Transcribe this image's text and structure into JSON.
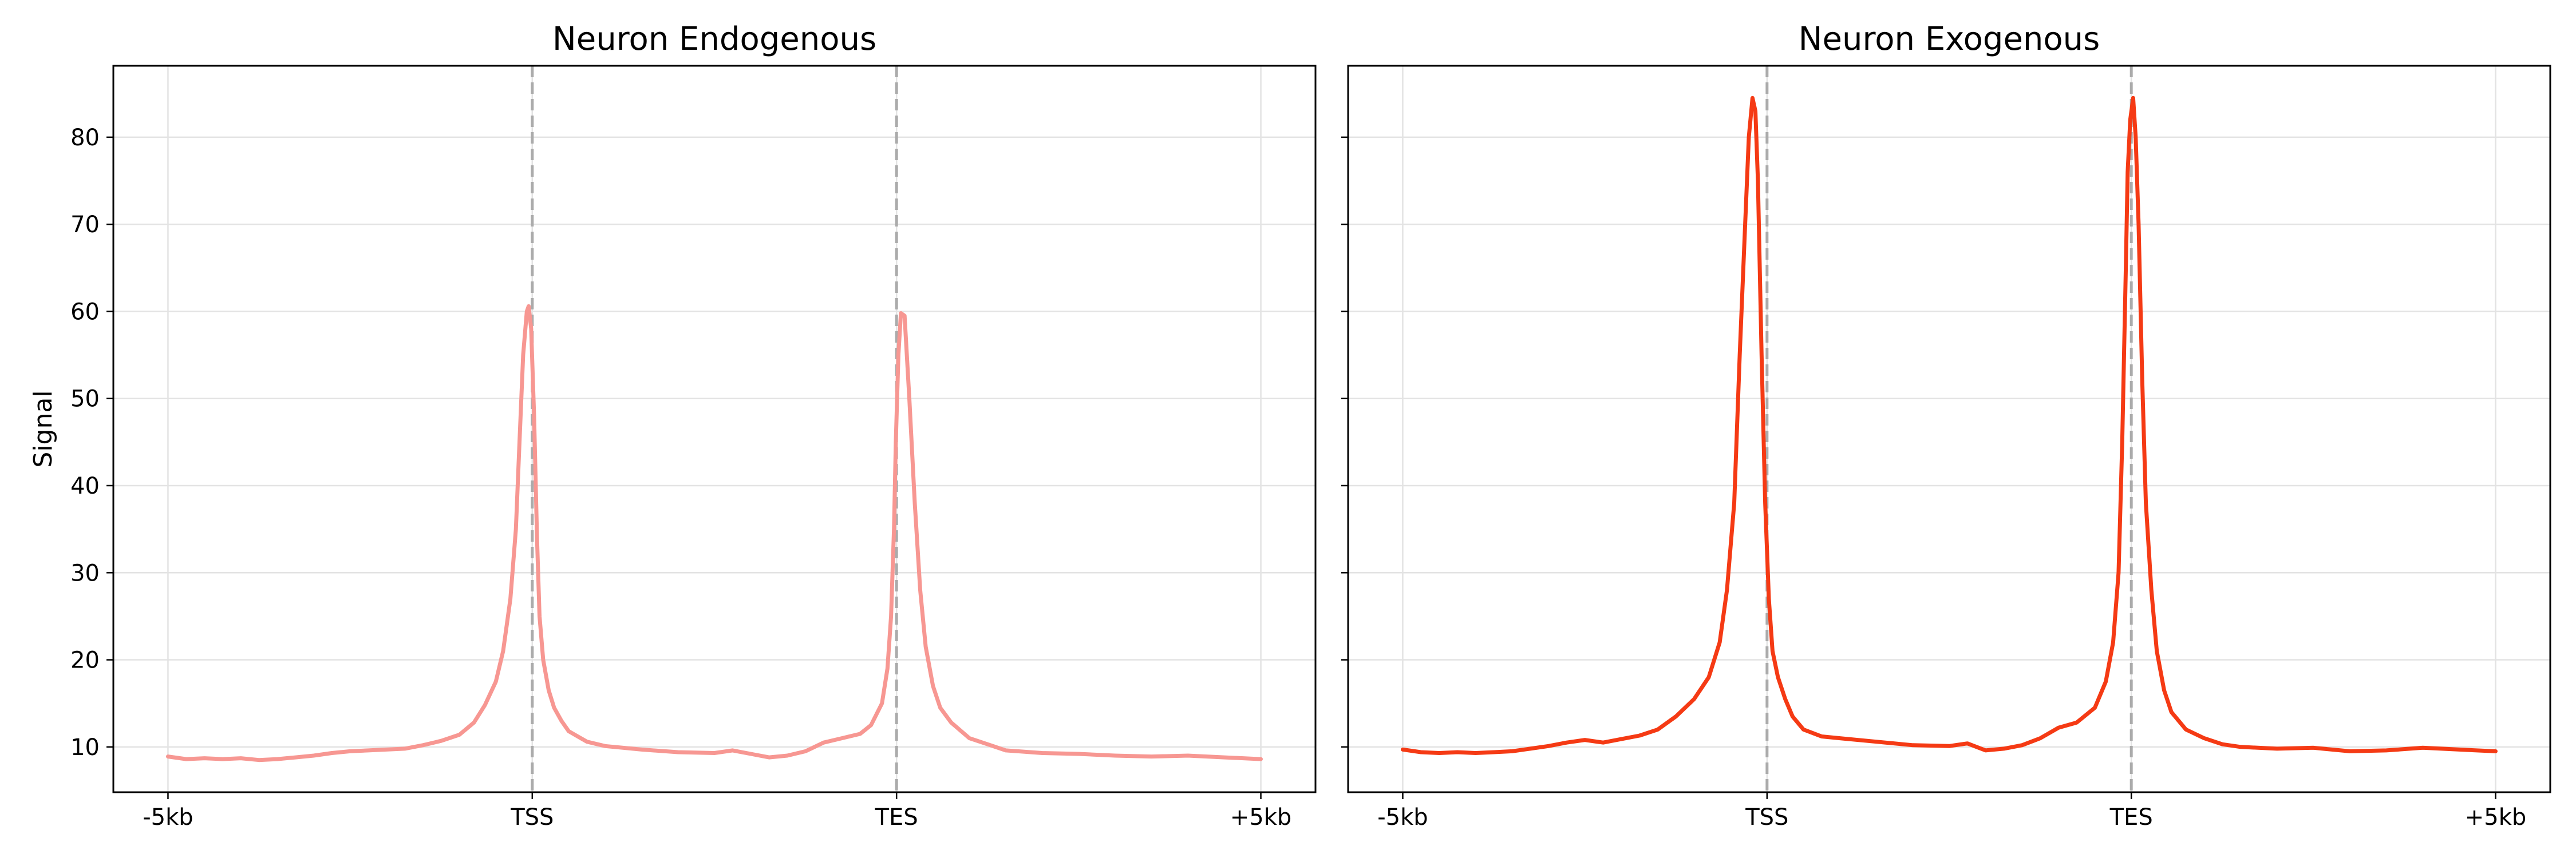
{
  "chart_data": [
    {
      "type": "line",
      "title": "Neuron Endogenous",
      "xlabel": "",
      "ylabel": "Signal",
      "ylim": [
        4.8,
        88.2
      ],
      "xlim": [
        -0.15,
        3.15
      ],
      "grid": true,
      "legend": "none",
      "color": "#f79792",
      "x_ticks": [
        {
          "x": 0,
          "label": "-5kb"
        },
        {
          "x": 1,
          "label": "TSS"
        },
        {
          "x": 2,
          "label": "TES"
        },
        {
          "x": 3,
          "label": "+5kb"
        }
      ],
      "y_ticks": [
        10,
        20,
        30,
        40,
        50,
        60,
        70,
        80
      ],
      "vlines": [
        {
          "x": 1,
          "style": "dashed"
        },
        {
          "x": 2,
          "style": "dashed"
        }
      ],
      "series": [
        {
          "points": [
            [
              0.0,
              8.9
            ],
            [
              0.05,
              8.6
            ],
            [
              0.1,
              8.7
            ],
            [
              0.15,
              8.6
            ],
            [
              0.2,
              8.7
            ],
            [
              0.25,
              8.5
            ],
            [
              0.3,
              8.6
            ],
            [
              0.35,
              8.8
            ],
            [
              0.4,
              9.0
            ],
            [
              0.45,
              9.3
            ],
            [
              0.5,
              9.5
            ],
            [
              0.55,
              9.6
            ],
            [
              0.6,
              9.7
            ],
            [
              0.65,
              9.8
            ],
            [
              0.7,
              10.2
            ],
            [
              0.75,
              10.7
            ],
            [
              0.8,
              11.4
            ],
            [
              0.84,
              12.8
            ],
            [
              0.87,
              14.8
            ],
            [
              0.9,
              17.5
            ],
            [
              0.92,
              21.0
            ],
            [
              0.94,
              27.0
            ],
            [
              0.955,
              35.0
            ],
            [
              0.965,
              45.0
            ],
            [
              0.975,
              55.0
            ],
            [
              0.985,
              60.0
            ],
            [
              0.99,
              60.6
            ],
            [
              0.997,
              58.0
            ],
            [
              1.005,
              48.0
            ],
            [
              1.013,
              34.0
            ],
            [
              1.02,
              25.0
            ],
            [
              1.03,
              20.0
            ],
            [
              1.045,
              16.5
            ],
            [
              1.06,
              14.5
            ],
            [
              1.08,
              13.0
            ],
            [
              1.1,
              11.8
            ],
            [
              1.15,
              10.6
            ],
            [
              1.2,
              10.1
            ],
            [
              1.3,
              9.7
            ],
            [
              1.4,
              9.4
            ],
            [
              1.5,
              9.3
            ],
            [
              1.55,
              9.6
            ],
            [
              1.6,
              9.2
            ],
            [
              1.65,
              8.8
            ],
            [
              1.7,
              9.0
            ],
            [
              1.75,
              9.5
            ],
            [
              1.8,
              10.5
            ],
            [
              1.85,
              11.0
            ],
            [
              1.9,
              11.5
            ],
            [
              1.93,
              12.5
            ],
            [
              1.96,
              15.0
            ],
            [
              1.975,
              19.0
            ],
            [
              1.985,
              25.0
            ],
            [
              1.993,
              35.0
            ],
            [
              1.998,
              45.0
            ],
            [
              2.005,
              55.0
            ],
            [
              2.012,
              59.8
            ],
            [
              2.022,
              59.5
            ],
            [
              2.035,
              50.0
            ],
            [
              2.05,
              38.0
            ],
            [
              2.065,
              28.0
            ],
            [
              2.08,
              21.5
            ],
            [
              2.1,
              17.0
            ],
            [
              2.12,
              14.5
            ],
            [
              2.15,
              12.8
            ],
            [
              2.2,
              11.0
            ],
            [
              2.25,
              10.3
            ],
            [
              2.3,
              9.6
            ],
            [
              2.4,
              9.3
            ],
            [
              2.5,
              9.2
            ],
            [
              2.6,
              9.0
            ],
            [
              2.7,
              8.9
            ],
            [
              2.8,
              9.0
            ],
            [
              2.9,
              8.8
            ],
            [
              3.0,
              8.6
            ]
          ]
        }
      ]
    },
    {
      "type": "line",
      "title": "Neuron Exogenous",
      "xlabel": "",
      "ylabel": "",
      "ylim": [
        4.8,
        88.2
      ],
      "xlim": [
        -0.15,
        3.15
      ],
      "grid": true,
      "legend": "none",
      "color": "#f53a14",
      "x_ticks": [
        {
          "x": 0,
          "label": "-5kb"
        },
        {
          "x": 1,
          "label": "TSS"
        },
        {
          "x": 2,
          "label": "TES"
        },
        {
          "x": 3,
          "label": "+5kb"
        }
      ],
      "y_ticks": [
        10,
        20,
        30,
        40,
        50,
        60,
        70,
        80
      ],
      "vlines": [
        {
          "x": 1,
          "style": "dashed"
        },
        {
          "x": 2,
          "style": "dashed"
        }
      ],
      "series": [
        {
          "points": [
            [
              0.0,
              9.7
            ],
            [
              0.05,
              9.4
            ],
            [
              0.1,
              9.3
            ],
            [
              0.15,
              9.4
            ],
            [
              0.2,
              9.3
            ],
            [
              0.25,
              9.4
            ],
            [
              0.3,
              9.5
            ],
            [
              0.35,
              9.8
            ],
            [
              0.4,
              10.1
            ],
            [
              0.45,
              10.5
            ],
            [
              0.5,
              10.8
            ],
            [
              0.55,
              10.5
            ],
            [
              0.6,
              10.9
            ],
            [
              0.65,
              11.3
            ],
            [
              0.7,
              12.0
            ],
            [
              0.75,
              13.5
            ],
            [
              0.8,
              15.5
            ],
            [
              0.84,
              18.0
            ],
            [
              0.87,
              22.0
            ],
            [
              0.89,
              28.0
            ],
            [
              0.91,
              38.0
            ],
            [
              0.925,
              55.0
            ],
            [
              0.94,
              70.0
            ],
            [
              0.95,
              80.0
            ],
            [
              0.96,
              84.5
            ],
            [
              0.968,
              83.0
            ],
            [
              0.975,
              75.0
            ],
            [
              0.985,
              55.0
            ],
            [
              0.995,
              38.0
            ],
            [
              1.005,
              27.0
            ],
            [
              1.015,
              21.0
            ],
            [
              1.03,
              18.0
            ],
            [
              1.05,
              15.5
            ],
            [
              1.07,
              13.5
            ],
            [
              1.1,
              12.0
            ],
            [
              1.15,
              11.2
            ],
            [
              1.2,
              11.0
            ],
            [
              1.3,
              10.6
            ],
            [
              1.4,
              10.2
            ],
            [
              1.5,
              10.1
            ],
            [
              1.55,
              10.4
            ],
            [
              1.6,
              9.6
            ],
            [
              1.65,
              9.8
            ],
            [
              1.7,
              10.2
            ],
            [
              1.75,
              11.0
            ],
            [
              1.8,
              12.2
            ],
            [
              1.85,
              12.8
            ],
            [
              1.9,
              14.5
            ],
            [
              1.93,
              17.5
            ],
            [
              1.95,
              22.0
            ],
            [
              1.965,
              30.0
            ],
            [
              1.975,
              45.0
            ],
            [
              1.985,
              65.0
            ],
            [
              1.99,
              76.0
            ],
            [
              1.997,
              82.0
            ],
            [
              2.005,
              84.5
            ],
            [
              2.012,
              80.0
            ],
            [
              2.02,
              70.0
            ],
            [
              2.03,
              52.0
            ],
            [
              2.04,
              38.0
            ],
            [
              2.055,
              28.0
            ],
            [
              2.07,
              21.0
            ],
            [
              2.09,
              16.5
            ],
            [
              2.11,
              14.0
            ],
            [
              2.15,
              12.0
            ],
            [
              2.2,
              11.0
            ],
            [
              2.25,
              10.3
            ],
            [
              2.3,
              10.0
            ],
            [
              2.4,
              9.8
            ],
            [
              2.5,
              9.9
            ],
            [
              2.6,
              9.5
            ],
            [
              2.7,
              9.6
            ],
            [
              2.8,
              9.9
            ],
            [
              2.9,
              9.7
            ],
            [
              3.0,
              9.5
            ]
          ]
        }
      ]
    }
  ]
}
